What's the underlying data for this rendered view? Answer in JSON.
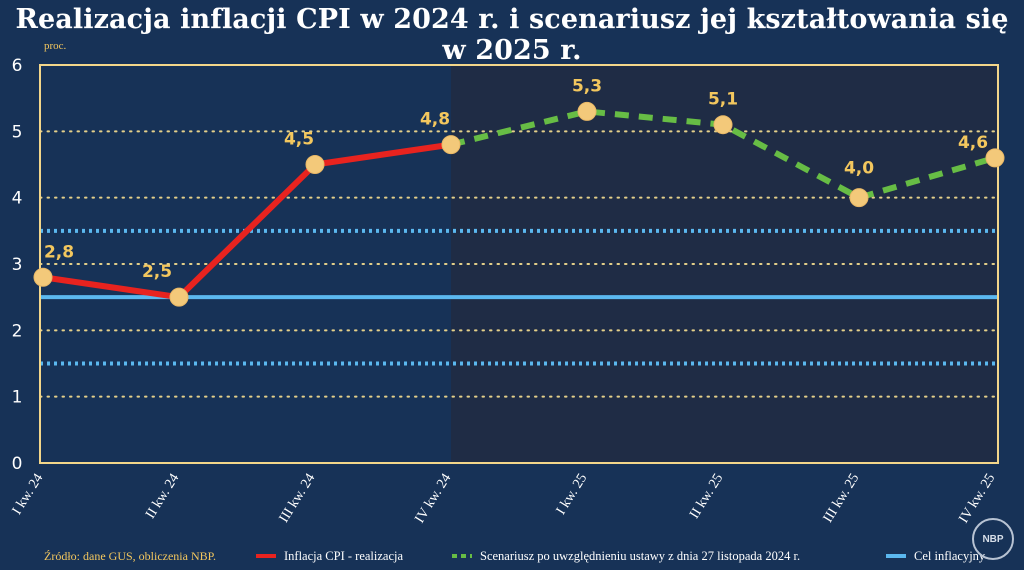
{
  "title": "Realizacja inflacji CPI w 2024 r. i scenariusz jej kształtowania się w 2025 r.",
  "unit_label": "proc.",
  "source": "Źródło: dane GUS, obliczenia NBP.",
  "logo_text": "NBP",
  "colors": {
    "background": "#173257",
    "forecast_background": "#1f2c45",
    "frame": "#f3d68a",
    "actual_line": "#e8231f",
    "forecast_line": "#67bd45",
    "target_line": "#5bb8ef",
    "marker": "#f3c97a",
    "label": "#f3c75e"
  },
  "chart_data": {
    "type": "line",
    "title": "Realizacja inflacji CPI w 2024 r. i scenariusz jej kształtowania się w 2025 r.",
    "ylabel": "proc.",
    "xlabel": "",
    "ylim": [
      0,
      6
    ],
    "yticks": [
      0,
      1,
      2,
      3,
      4,
      5,
      6
    ],
    "categories": [
      "I kw. 24",
      "II kw. 24",
      "III kw. 24",
      "IV kw. 24",
      "I kw. 25",
      "II kw. 25",
      "III kw. 25",
      "IV kw. 25"
    ],
    "forecast_start_index": 3,
    "series": [
      {
        "name": "Inflacja CPI - realizacja",
        "style": "solid",
        "values": [
          2.8,
          2.5,
          4.5,
          4.8,
          null,
          null,
          null,
          null
        ]
      },
      {
        "name": "Scenariusz po uwzględnieniu ustawy z dnia 27 listopada 2024 r.",
        "style": "dashed",
        "values": [
          null,
          null,
          null,
          4.8,
          5.3,
          5.1,
          4.0,
          4.6
        ]
      }
    ],
    "point_labels": [
      "2,8",
      "2,5",
      "4,5",
      "4,8",
      "5,3",
      "5,1",
      "4,0",
      "4,6"
    ],
    "target": {
      "name": "Cel inflacyjny",
      "value": 2.5,
      "band": [
        1.5,
        3.5
      ]
    },
    "grid": true
  },
  "legend": [
    {
      "label": "Inflacja CPI - realizacja",
      "style": "solid"
    },
    {
      "label": "Scenariusz po uwzględnieniu ustawy z dnia 27 listopada 2024 r.",
      "style": "dashed"
    },
    {
      "label": "Cel inflacyjny",
      "style": "target"
    }
  ]
}
